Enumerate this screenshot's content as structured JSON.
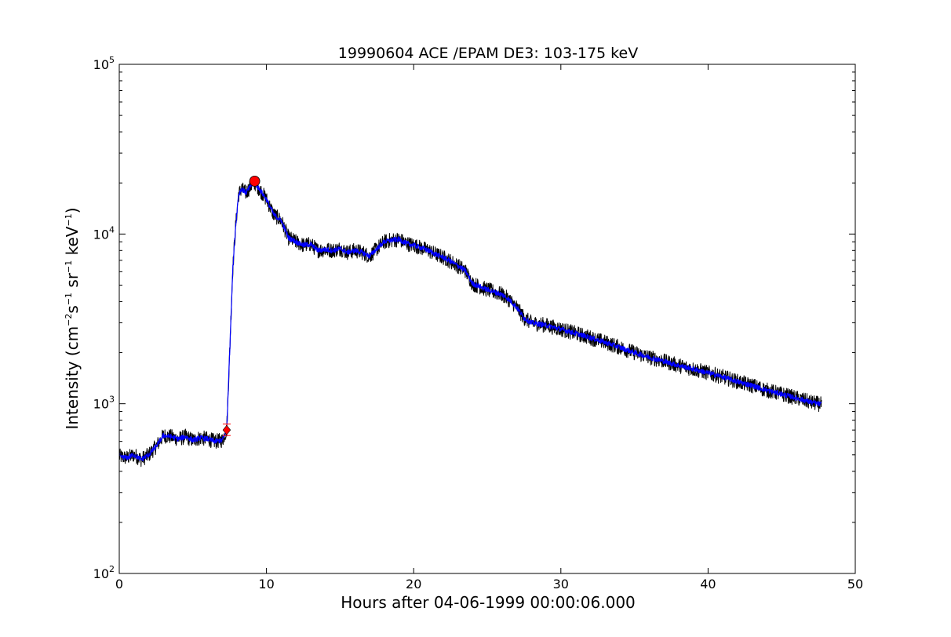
{
  "chart_data": {
    "type": "line",
    "title": "19990604 ACE /EPAM DE3: 103-175 keV",
    "xlabel": "Hours after 04-06-1999 00:00:06.000",
    "ylabel": {
      "pre": "Intensity (cm",
      "e1": "−2",
      "t1": "s",
      "e2": "−1",
      "t2": " sr",
      "e3": "−1",
      "t3": " keV",
      "e4": "−1",
      "post": ")"
    },
    "xlim": [
      0,
      50
    ],
    "ylim": [
      100,
      100000
    ],
    "yscale": "log",
    "x_ticks": [
      {
        "value": 0,
        "label": "0"
      },
      {
        "value": 10,
        "label": "10"
      },
      {
        "value": 20,
        "label": "20"
      },
      {
        "value": 30,
        "label": "30"
      },
      {
        "value": 40,
        "label": "40"
      },
      {
        "value": 50,
        "label": "50"
      }
    ],
    "y_ticks": [
      {
        "value": 100,
        "base": "10",
        "exp": "2"
      },
      {
        "value": 1000,
        "base": "10",
        "exp": "3"
      },
      {
        "value": 10000,
        "base": "10",
        "exp": "4"
      },
      {
        "value": 100000,
        "base": "10",
        "exp": "5"
      }
    ],
    "grid": false,
    "series": [
      {
        "color": "#000000",
        "role": "raw intensity (noisy)",
        "x": [
          0,
          0.5,
          1,
          1.5,
          2,
          2.5,
          3,
          3.5,
          4,
          4.5,
          5,
          5.5,
          6,
          6.5,
          7,
          7.3,
          7.5,
          7.7,
          7.9,
          8.1,
          8.3,
          8.6,
          9,
          9.2,
          9.6,
          10,
          10.5,
          11,
          11.5,
          12,
          12.5,
          13,
          13.5,
          14,
          14.5,
          15,
          15.5,
          16,
          16.5,
          17,
          17.5,
          18,
          18.5,
          19,
          19.5,
          20,
          20.5,
          21,
          21.5,
          22,
          22.5,
          23,
          23.5,
          24,
          25,
          26,
          26.5,
          27,
          27.5,
          28,
          29,
          30,
          31,
          32,
          33,
          34,
          35,
          36,
          37,
          38,
          39,
          40,
          41,
          42,
          43,
          44,
          45,
          46,
          47,
          47.7
        ],
        "y": [
          490,
          480,
          500,
          470,
          500,
          560,
          650,
          640,
          620,
          640,
          610,
          630,
          620,
          600,
          610,
          700,
          2000,
          6000,
          11000,
          17000,
          18500,
          17500,
          19500,
          20000,
          18000,
          16000,
          13000,
          12000,
          9500,
          9000,
          8600,
          8700,
          8000,
          8100,
          8000,
          8200,
          7800,
          8000,
          7800,
          7400,
          8200,
          9000,
          9200,
          9300,
          8800,
          8600,
          8300,
          8000,
          7600,
          7300,
          6900,
          6500,
          6100,
          5100,
          4700,
          4400,
          4100,
          3700,
          3200,
          3000,
          2900,
          2750,
          2600,
          2450,
          2300,
          2150,
          2000,
          1880,
          1780,
          1680,
          1600,
          1520,
          1440,
          1350,
          1280,
          1200,
          1140,
          1080,
          1020,
          990
        ]
      },
      {
        "color": "#0000ff",
        "role": "smoothed intensity",
        "x": [
          0,
          0.5,
          1,
          1.5,
          2,
          2.5,
          3,
          3.5,
          4,
          4.5,
          5,
          5.5,
          6,
          6.5,
          7,
          7.3,
          7.5,
          7.7,
          7.9,
          8.1,
          8.3,
          8.6,
          9,
          9.2,
          9.6,
          10,
          10.5,
          11,
          11.5,
          12,
          12.5,
          13,
          13.5,
          14,
          14.5,
          15,
          15.5,
          16,
          16.5,
          17,
          17.5,
          18,
          18.5,
          19,
          19.5,
          20,
          20.5,
          21,
          21.5,
          22,
          22.5,
          23,
          23.5,
          24,
          25,
          26,
          26.5,
          27,
          27.5,
          28,
          29,
          30,
          31,
          32,
          33,
          34,
          35,
          36,
          37,
          38,
          39,
          40,
          41,
          42,
          43,
          44,
          45,
          46,
          47,
          47.7
        ],
        "y": [
          490,
          480,
          500,
          470,
          500,
          560,
          650,
          640,
          620,
          640,
          610,
          630,
          620,
          600,
          610,
          700,
          2000,
          6000,
          11000,
          17000,
          18500,
          17500,
          19500,
          20000,
          18000,
          16000,
          13000,
          12000,
          9500,
          9000,
          8600,
          8700,
          8000,
          8100,
          8000,
          8200,
          7800,
          8000,
          7800,
          7400,
          8200,
          9000,
          9200,
          9300,
          8800,
          8600,
          8300,
          8000,
          7600,
          7300,
          6900,
          6500,
          6100,
          5100,
          4700,
          4400,
          4100,
          3700,
          3200,
          3000,
          2900,
          2750,
          2600,
          2450,
          2300,
          2150,
          2000,
          1880,
          1780,
          1680,
          1600,
          1520,
          1440,
          1350,
          1280,
          1200,
          1140,
          1080,
          1020,
          990
        ]
      }
    ],
    "markers": [
      {
        "x": 7.3,
        "y": 700,
        "shape": "diamond",
        "color": "#ff0000",
        "errorbar": [
          650,
          760
        ]
      },
      {
        "x": 9.2,
        "y": 20500,
        "shape": "circle",
        "color": "#ff0000"
      }
    ]
  }
}
